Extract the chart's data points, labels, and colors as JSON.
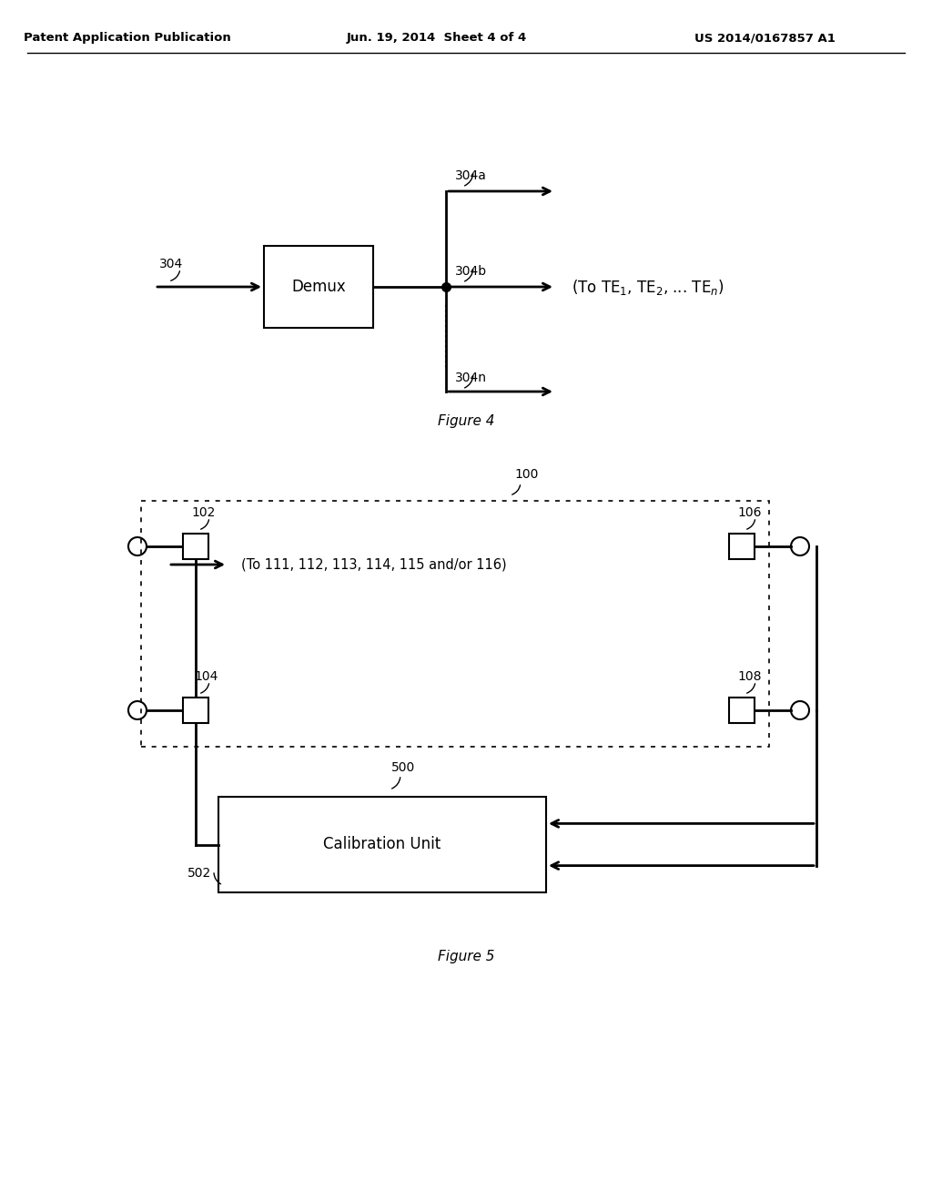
{
  "bg_color": "#ffffff",
  "header_left": "Patent Application Publication",
  "header_mid": "Jun. 19, 2014  Sheet 4 of 4",
  "header_right": "US 2014/0167857 A1",
  "fig4_caption": "Figure 4",
  "fig5_caption": "Figure 5",
  "fig4": {
    "demux_label": "Demux",
    "input_label": "304",
    "out_a_label": "304a",
    "out_b_label": "304b",
    "out_n_label": "304n",
    "te_label": "(To TE"
  },
  "fig5": {
    "calib_label": "Calibration Unit",
    "label_100": "100",
    "label_102": "102",
    "label_104": "104",
    "label_106": "106",
    "label_108": "108",
    "label_500": "500",
    "label_502": "502",
    "to_text": "(To 111, 112, 113, 114, 115 and/or 116)"
  }
}
